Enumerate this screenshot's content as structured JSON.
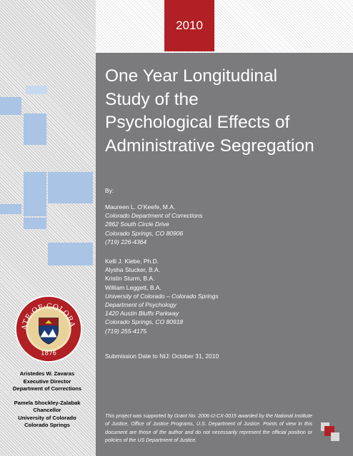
{
  "report": {
    "year": "2010",
    "title_lines": [
      "One Year Longitudinal",
      "Study of the",
      "Psychological Effects of",
      "Administrative Segregation"
    ],
    "by_label": "By:",
    "authors_group1": [
      {
        "text": "Maureen L. O’Keefe, M.A.",
        "italic": false
      },
      {
        "text": "Colorado Department of Corrections",
        "italic": true
      },
      {
        "text": "2862 South Circle Drive",
        "italic": true
      },
      {
        "text": "Colorado Springs, CO  80906",
        "italic": true
      },
      {
        "text": "(719) 226-4364",
        "italic": true
      }
    ],
    "authors_group2": [
      {
        "text": "Kelli J. Klebe, Ph.D.",
        "italic": false
      },
      {
        "text": "Alysha Stucker, B.A.",
        "italic": false
      },
      {
        "text": "Kristin Sturm, B.A.",
        "italic": false
      },
      {
        "text": "William Leggett, B.A.",
        "italic": false
      },
      {
        "text": "University of Colorado – Colorado Springs",
        "italic": true
      },
      {
        "text": "Department of Psychology",
        "italic": true
      },
      {
        "text": "1420 Austin Bluffs Parkway",
        "italic": true
      },
      {
        "text": "Colorado Springs, CO  80918",
        "italic": true
      },
      {
        "text": "(719) 255-4175",
        "italic": true
      }
    ],
    "submission": "Submission Date to NIJ:  October 31, 2010",
    "disclaimer": "This project was supported by Grant No. 2006-IJ-CX-0015 awarded by the National Institute of Justice, Office of Justice Programs, U.S. Department of Justice. Points of view in this document are those of the author and do not necessarily represent the official position or policies of the US Department of Justice."
  },
  "credits": {
    "person1": [
      "Aristedes W. Zavaras",
      "Executive Director",
      "Department of Corrections"
    ],
    "person2": [
      "Pamela Shockley-Zalabak",
      "Chancellor",
      "University of Colorado",
      "Colorado Springs"
    ]
  },
  "seal": {
    "top_text": "STATE·OF·COLORADO",
    "year": "1876"
  },
  "colors": {
    "accent_red": "#b12024",
    "panel_gray": "#7b7b7d",
    "block_blue": "#a9c4e4"
  }
}
